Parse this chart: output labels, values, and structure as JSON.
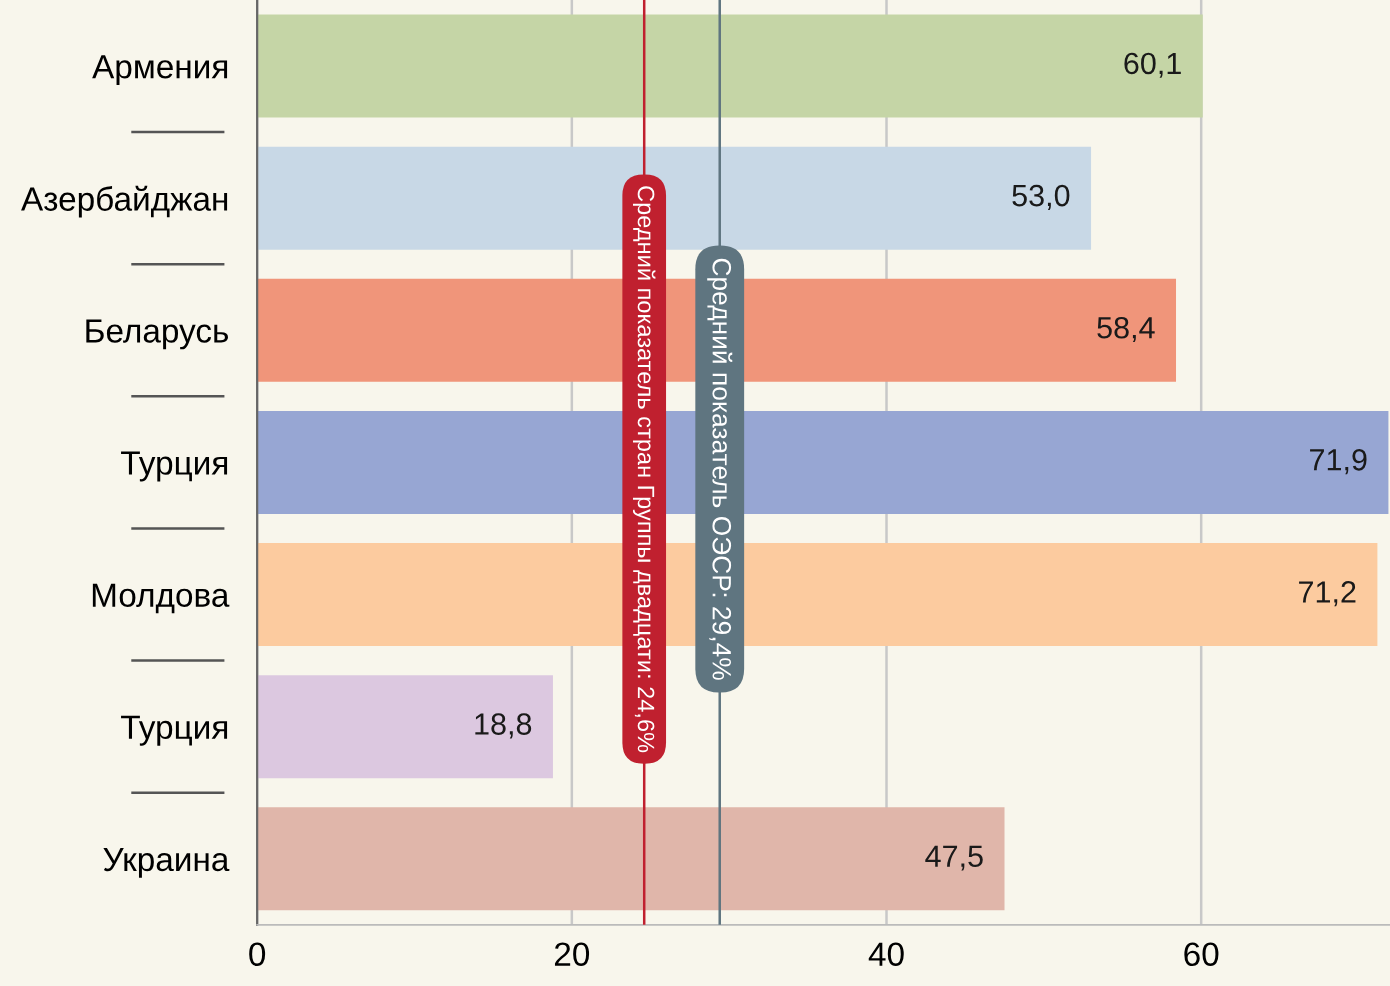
{
  "chart_data": {
    "type": "bar",
    "orientation": "horizontal",
    "categories": [
      "Армения",
      "Азербайджан",
      "Беларусь",
      "Турция",
      "Молдова",
      "Турция",
      "Украина"
    ],
    "values": [
      60.1,
      53.0,
      58.4,
      71.9,
      71.2,
      18.8,
      47.5
    ],
    "value_labels": [
      "60,1",
      "53,0",
      "58,4",
      "71,9",
      "71,2",
      "18,8",
      "47,5"
    ],
    "colors": [
      "#c5d5a6",
      "#c8d8e6",
      "#f0957a",
      "#97a6d3",
      "#fccb9f",
      "#dcc8e0",
      "#e0b6aa"
    ],
    "xlim": [
      0,
      72
    ],
    "xticks": [
      0,
      20,
      40,
      60
    ],
    "grid": "x",
    "legend": false,
    "ref_lines": [
      {
        "axis": "x",
        "value": 24.6,
        "label": "Средний показатель стран Группы двадцати: 24,6%",
        "color": "#c0202f"
      },
      {
        "axis": "x",
        "value": 29.4,
        "label": "Средний показатель ОЭСР: 29,4%",
        "color": "#5f7580"
      }
    ]
  }
}
